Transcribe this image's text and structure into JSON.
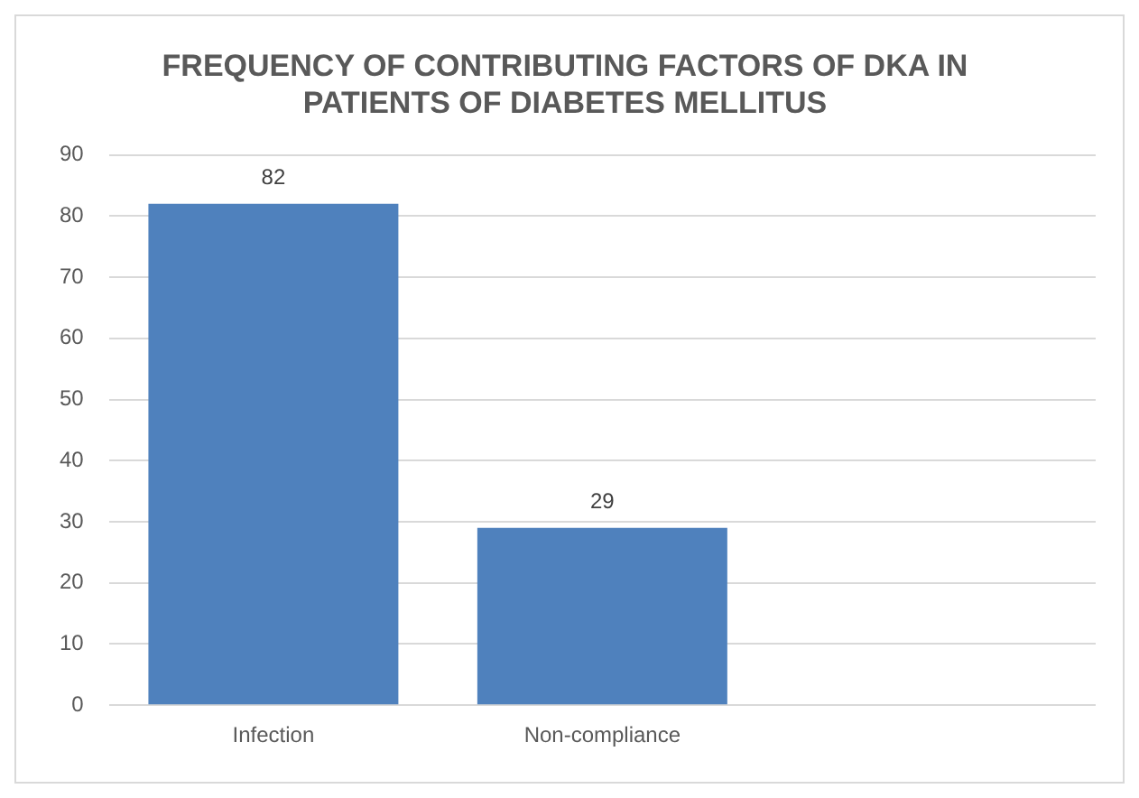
{
  "chart_data": {
    "type": "bar",
    "title": "FREQUENCY OF CONTRIBUTING FACTORS OF DKA IN PATIENTS OF DIABETES MELLITUS",
    "categories": [
      "Infection",
      "Non-compliance",
      null
    ],
    "values": [
      82,
      29,
      null
    ],
    "color": "#4f81bd",
    "data_labels": true,
    "ylim": [
      0,
      90
    ],
    "yticks": [
      0,
      10,
      20,
      30,
      40,
      50,
      60,
      70,
      80,
      90
    ],
    "grid": "y"
  }
}
